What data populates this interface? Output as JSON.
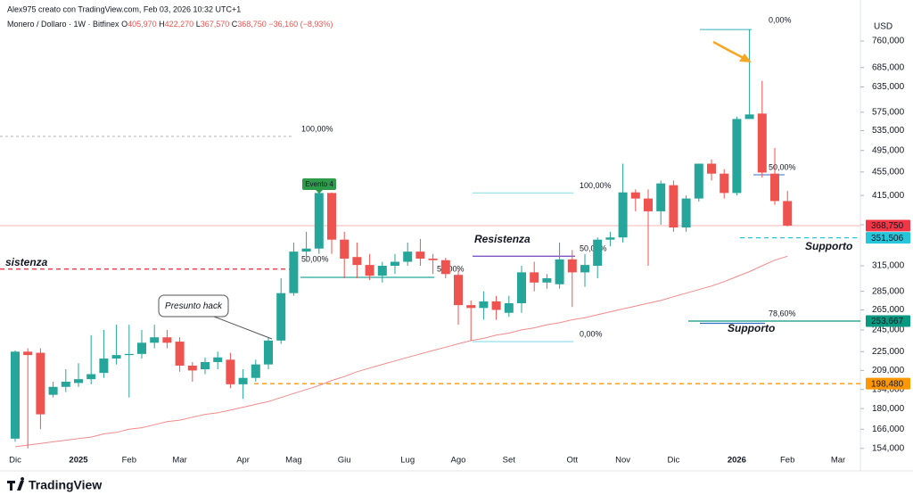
{
  "chart_data": {
    "type": "candlestick",
    "credit": "Alex975 creato con TradingView.com, Feb 03, 2026 10:32 UTC+1",
    "legend": {
      "symbol": "Monero / Dollaro · 1W · Bitfinex",
      "fields": [
        {
          "key": "O",
          "label": "405,970"
        },
        {
          "key": "H",
          "label": "422,270"
        },
        {
          "key": "L",
          "label": "367,570"
        },
        {
          "key": "C",
          "label": "368,750"
        }
      ],
      "change": "−36,160 (−8,93%)"
    },
    "currency": "USD",
    "brand": "TradingView",
    "log_scale": true,
    "grid": false,
    "up_color": "#26a69a",
    "down_color": "#ef5350",
    "categories": [
      "Dic",
      null,
      null,
      null,
      null,
      "2025",
      null,
      null,
      null,
      "Feb",
      null,
      null,
      null,
      "Mar",
      null,
      null,
      null,
      null,
      "Apr",
      null,
      null,
      null,
      "Mag",
      null,
      null,
      null,
      "Giu",
      null,
      null,
      null,
      null,
      "Lug",
      null,
      null,
      null,
      "Ago",
      null,
      null,
      null,
      "Set",
      null,
      null,
      null,
      null,
      "Ott",
      null,
      null,
      null,
      "Nov",
      null,
      null,
      null,
      "Dic",
      null,
      null,
      null,
      null,
      "2026",
      null,
      null,
      null,
      "Feb",
      null,
      null,
      null,
      "Mar"
    ],
    "bold_categories": [
      "2025",
      "2026"
    ],
    "open": [
      160,
      225,
      224,
      190,
      196,
      199,
      202,
      207,
      219,
      222,
      223,
      233,
      238,
      234,
      213,
      210,
      216,
      218,
      198,
      203,
      214,
      235,
      283,
      333,
      337,
      419,
      349,
      326,
      316,
      303,
      315,
      320,
      333,
      324,
      322,
      304,
      270,
      267,
      274,
      262,
      272,
      307,
      295,
      293,
      323,
      307,
      315,
      349,
      352,
      420,
      410,
      390,
      432,
      366,
      410,
      470,
      452,
      419,
      560,
      572,
      452,
      405.97,
      null,
      null,
      null,
      null
    ],
    "high": [
      226,
      228,
      228,
      200,
      210,
      215,
      240,
      245,
      250,
      250,
      245,
      250,
      245,
      238,
      216,
      220,
      225,
      224,
      210,
      218,
      238,
      300,
      345,
      360,
      422,
      420,
      360,
      345,
      330,
      320,
      330,
      345,
      350,
      330,
      325,
      310,
      275,
      285,
      280,
      280,
      315,
      320,
      305,
      345,
      335,
      330,
      352,
      360,
      470,
      425,
      425,
      440,
      440,
      415,
      470,
      478,
      460,
      565,
      795,
      650,
      500,
      422.27,
      null,
      null,
      null,
      null
    ],
    "low": [
      158,
      154,
      166,
      188,
      192,
      196,
      198,
      203,
      214,
      188,
      219,
      228,
      228,
      208,
      200,
      206,
      210,
      195,
      187,
      200,
      210,
      232,
      280,
      320,
      330,
      330,
      300,
      300,
      298,
      295,
      305,
      315,
      315,
      305,
      300,
      250,
      235,
      255,
      255,
      258,
      262,
      285,
      288,
      288,
      268,
      290,
      300,
      340,
      345,
      390,
      315,
      370,
      360,
      360,
      405,
      440,
      410,
      415,
      560,
      445,
      400,
      367.57,
      null,
      null,
      null,
      null
    ],
    "close": [
      225,
      222,
      176,
      196,
      200,
      202,
      206,
      219,
      222,
      223,
      233,
      238,
      233,
      213,
      209,
      216,
      220,
      198,
      203,
      214,
      235,
      283,
      333,
      337,
      419,
      349,
      324,
      316,
      303,
      315,
      320,
      333,
      324,
      322,
      305,
      270,
      267,
      274,
      265,
      272,
      307,
      295,
      300,
      323,
      307,
      316,
      349,
      352,
      420,
      410,
      390,
      435,
      366,
      410,
      470,
      452,
      419,
      560,
      570,
      454,
      406,
      368.75,
      null,
      null,
      null,
      null
    ],
    "moving_average": {
      "color": "#f28b8b",
      "values": [
        155,
        156,
        157,
        158,
        159,
        160,
        161,
        163,
        164,
        166,
        167,
        169,
        171,
        172,
        174,
        176,
        177,
        179,
        181,
        183,
        185,
        188,
        191,
        194,
        197,
        201,
        204,
        208,
        211,
        214,
        217,
        220,
        223,
        226,
        229,
        232,
        235,
        237,
        240,
        242,
        245,
        247,
        250,
        252,
        255,
        257,
        260,
        263,
        266,
        269,
        272,
        275,
        279,
        283,
        287,
        291,
        296,
        302,
        308,
        315,
        322,
        327,
        null,
        null,
        null,
        null
      ]
    },
    "ylim": [
      145,
      862
    ],
    "yticks": [
      {
        "value": 154,
        "label": "154,000"
      },
      {
        "value": 166,
        "label": "166,000"
      },
      {
        "value": 180,
        "label": "180,000"
      },
      {
        "value": 194,
        "label": "194,000"
      },
      {
        "value": 209,
        "label": "209,000"
      },
      {
        "value": 225,
        "label": "225,000"
      },
      {
        "value": 245,
        "label": "245,000"
      },
      {
        "value": 265,
        "label": "265,000"
      },
      {
        "value": 285,
        "label": "285,000"
      },
      {
        "value": 315,
        "label": "315,000"
      },
      {
        "value": 370,
        "label": "370,000"
      },
      {
        "value": 415,
        "label": "415,000"
      },
      {
        "value": 455,
        "label": "455,000"
      },
      {
        "value": 495,
        "label": "495,000"
      },
      {
        "value": 535,
        "label": "535,000"
      },
      {
        "value": 575,
        "label": "575,000"
      },
      {
        "value": 635,
        "label": "635,000"
      },
      {
        "value": 685,
        "label": "685,000"
      },
      {
        "value": 760,
        "label": "760,000"
      }
    ],
    "drawings": [
      {
        "value": 523,
        "color": "#c8c8c8",
        "dash": "3,3",
        "label": "100,00%"
      },
      {
        "value": 795,
        "color": "#5bc0c8",
        "label": "0,00%"
      },
      {
        "value": 419,
        "color": "#9ee3ea",
        "label": "100,00%"
      },
      {
        "value": 234,
        "color": "#9ee3ea",
        "label": "0,00%"
      },
      {
        "value": 327,
        "color": "#7e57c2",
        "label": "50,00%"
      },
      {
        "value": 301,
        "color": "#26a69a",
        "label": "50,00%"
      },
      {
        "value": 450,
        "color": "#5b8fd6",
        "label": "50,00%"
      },
      {
        "value": 253.667,
        "color": "#089981",
        "label": "78,60%"
      },
      {
        "value": 311,
        "color": "#f23645",
        "dash": "5,4"
      },
      {
        "value": 198.48,
        "color": "#ff9800",
        "dash": "5,4"
      },
      {
        "value": 351.506,
        "color": "#26c6da",
        "dash": "5,4"
      },
      {
        "value": 368.75,
        "color": "#f6b6b6"
      }
    ],
    "price_labels": [
      {
        "value": 368.75,
        "label": "368,750",
        "color": "#f23645"
      },
      {
        "value": 351.506,
        "label": "351,506",
        "color": "#26c6da"
      },
      {
        "value": 253.667,
        "label": "253,667",
        "color": "#089981"
      },
      {
        "value": 198.48,
        "label": "198,480",
        "color": "#ff9800"
      }
    ],
    "annotations": [
      {
        "text": "sistenza",
        "color": "#f23645"
      },
      {
        "text": "Resistenza",
        "color": "#ab47bc"
      },
      {
        "text": "Supporto",
        "color": "#26c6da"
      },
      {
        "text": "Supporto",
        "color": "#2f6fc4"
      },
      {
        "text": "Evento 4",
        "color": "#ffffff"
      },
      {
        "text": "Presunto hack",
        "color": "#131722"
      }
    ]
  }
}
